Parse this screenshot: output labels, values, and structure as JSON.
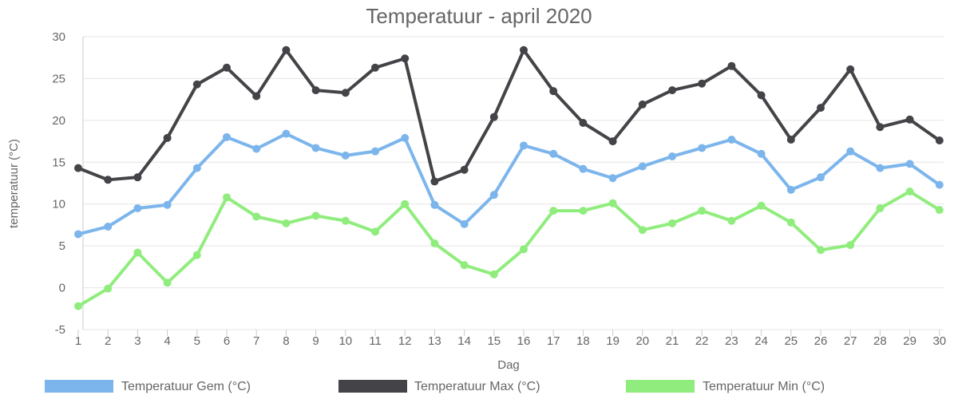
{
  "chart_data": {
    "type": "line",
    "title": "Temperatuur - april 2020",
    "xlabel": "Dag",
    "ylabel": "temperatuur (°C)",
    "ylim": [
      -5,
      30
    ],
    "yticks": [
      -5,
      0,
      5,
      10,
      15,
      20,
      25,
      30
    ],
    "categories": [
      "1",
      "2",
      "3",
      "4",
      "5",
      "6",
      "7",
      "8",
      "9",
      "10",
      "11",
      "12",
      "13",
      "14",
      "15",
      "16",
      "17",
      "18",
      "19",
      "20",
      "21",
      "22",
      "23",
      "24",
      "25",
      "26",
      "27",
      "28",
      "29",
      "30"
    ],
    "grid": true,
    "legend_position": "bottom",
    "series": [
      {
        "name": "Temperatuur Gem (°C)",
        "color": "#7cb5ec",
        "values": [
          6.4,
          7.3,
          9.5,
          9.9,
          14.3,
          18.0,
          16.6,
          18.4,
          16.7,
          15.8,
          16.3,
          17.9,
          9.9,
          7.6,
          11.1,
          17.0,
          16.0,
          14.2,
          13.1,
          14.5,
          15.7,
          16.7,
          17.7,
          16.0,
          11.7,
          13.2,
          16.3,
          14.3,
          14.8,
          12.3
        ]
      },
      {
        "name": "Temperatuur Max (°C)",
        "color": "#434348",
        "values": [
          14.3,
          12.9,
          13.2,
          17.9,
          24.3,
          26.3,
          22.9,
          28.4,
          23.6,
          23.3,
          26.3,
          27.4,
          12.7,
          14.1,
          20.4,
          28.4,
          23.5,
          19.7,
          17.5,
          21.9,
          23.6,
          24.4,
          26.5,
          23.0,
          17.7,
          21.5,
          26.1,
          19.2,
          20.1,
          17.6
        ]
      },
      {
        "name": "Temperatuur Min (°C)",
        "color": "#90ed7d",
        "values": [
          -2.2,
          -0.1,
          4.2,
          0.6,
          3.9,
          10.8,
          8.5,
          7.7,
          8.6,
          8.0,
          6.7,
          10.0,
          5.3,
          2.7,
          1.6,
          4.6,
          9.2,
          9.2,
          10.1,
          6.9,
          7.7,
          9.2,
          8.0,
          9.8,
          7.8,
          4.5,
          5.1,
          9.5,
          11.5,
          9.3
        ]
      }
    ]
  }
}
